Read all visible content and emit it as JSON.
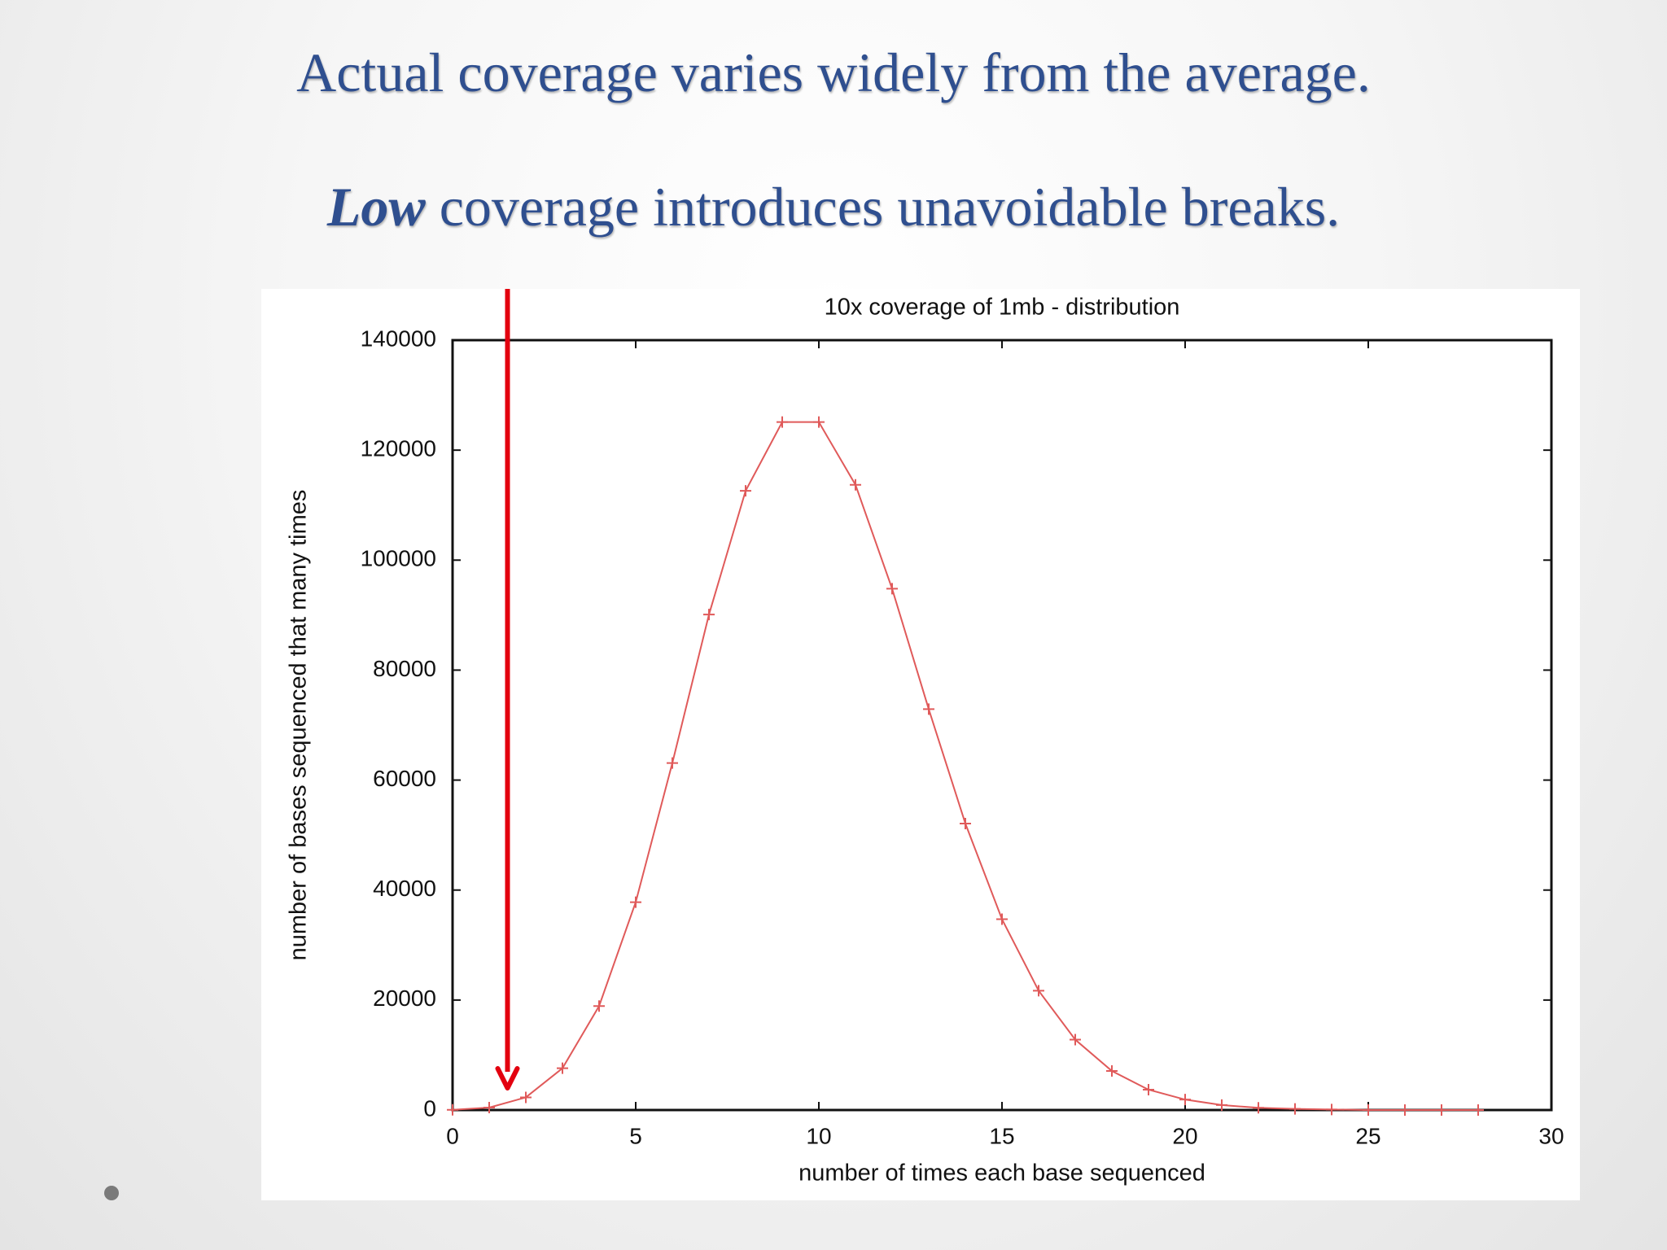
{
  "slide": {
    "title_line1": "Actual coverage varies widely from the average.",
    "title_line2_emphasis": "Low",
    "title_line2_rest": " coverage introduces unavoidable breaks.",
    "title_color": "#2f4f8f"
  },
  "chart_data": {
    "type": "line",
    "title": "10x coverage of 1mb - distribution",
    "xlabel": "number of times each base sequenced",
    "ylabel": "number of bases sequenced that many times",
    "xlim": [
      0,
      30
    ],
    "ylim": [
      0,
      140000
    ],
    "x_ticks": [
      0,
      5,
      10,
      15,
      20,
      25,
      30
    ],
    "y_ticks": [
      0,
      20000,
      40000,
      60000,
      80000,
      100000,
      120000,
      140000
    ],
    "grid": false,
    "series": [
      {
        "color": "#e05a5a",
        "marker": "plus",
        "x": [
          0,
          1,
          2,
          3,
          4,
          5,
          6,
          7,
          8,
          9,
          10,
          11,
          12,
          13,
          14,
          15,
          16,
          17,
          18,
          19,
          20,
          21,
          22,
          23,
          24,
          25,
          26,
          27,
          28
        ],
        "y": [
          45,
          450,
          2300,
          7600,
          18900,
          37800,
          63100,
          90100,
          112600,
          125100,
          125100,
          113700,
          94800,
          72900,
          52100,
          34700,
          21700,
          12800,
          7100,
          3700,
          1900,
          900,
          400,
          200,
          100,
          0,
          0,
          0,
          0
        ]
      }
    ],
    "annotation": {
      "type": "downward arrow",
      "x": 1.5,
      "color": "#e3000f"
    }
  }
}
